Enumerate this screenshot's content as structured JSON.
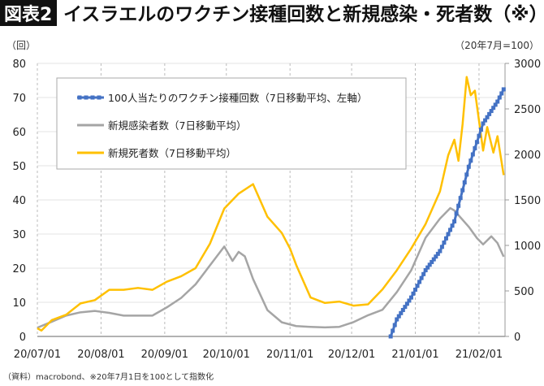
{
  "header": {
    "figure_label": "図表2",
    "title": "イスラエルのワクチン接種回数と新規感染・死者数（※）"
  },
  "footer": {
    "source": "（資料）macrobond、※20年7月1日を100として指数化"
  },
  "chart_data": {
    "type": "line",
    "title": "イスラエルのワクチン接種回数と新規感染・死者数（※）",
    "left_axis": {
      "unit_label": "（回）",
      "ylim": [
        0,
        80
      ],
      "ticks": [
        "0",
        "10",
        "20",
        "30",
        "40",
        "50",
        "60",
        "70",
        "80"
      ]
    },
    "right_axis": {
      "unit_label": "（20年7月=100）",
      "ylim": [
        0,
        3000
      ],
      "ticks": [
        "0",
        "500",
        "1000",
        "1500",
        "2000",
        "2500",
        "3000"
      ]
    },
    "x_ticks": [
      "20/07/01",
      "20/08/01",
      "20/09/01",
      "20/10/01",
      "20/11/01",
      "20/12/01",
      "21/01/01",
      "21/02/01"
    ],
    "x_tick_dates": [
      "2020-07-01",
      "2020-08-01",
      "2020-09-01",
      "2020-10-01",
      "2020-11-01",
      "2020-12-01",
      "2021-01-01",
      "2021-02-01"
    ],
    "grid": true,
    "legend_position": "top-left",
    "series": [
      {
        "name": "100人当たりのワクチン接種回数（7日移動平均、左軸）",
        "axis": "left",
        "color": "#4472c4",
        "marker": "square",
        "points": [
          [
            "2020-12-20",
            0
          ],
          [
            "2020-12-23",
            5
          ],
          [
            "2020-12-30",
            11.4
          ],
          [
            "2021-01-06",
            19.4
          ],
          [
            "2021-01-13",
            25
          ],
          [
            "2021-01-20",
            33.7
          ],
          [
            "2021-01-27",
            49.7
          ],
          [
            "2021-02-03",
            62.4
          ],
          [
            "2021-02-10",
            68.8
          ],
          [
            "2021-02-13",
            72.4
          ]
        ]
      },
      {
        "name": "新規感染者数（7日移動平均）",
        "axis": "right",
        "color": "#a5a5a5",
        "points": [
          [
            "2020-07-01",
            96
          ],
          [
            "2020-07-08",
            161
          ],
          [
            "2020-07-15",
            229
          ],
          [
            "2020-07-22",
            265
          ],
          [
            "2020-07-29",
            280
          ],
          [
            "2020-08-05",
            259
          ],
          [
            "2020-08-12",
            229
          ],
          [
            "2020-08-19",
            229
          ],
          [
            "2020-08-26",
            229
          ],
          [
            "2020-09-02",
            319
          ],
          [
            "2020-09-09",
            423
          ],
          [
            "2020-09-16",
            572
          ],
          [
            "2020-09-23",
            780
          ],
          [
            "2020-09-30",
            988
          ],
          [
            "2020-10-04",
            830
          ],
          [
            "2020-10-07",
            929
          ],
          [
            "2020-10-10",
            880
          ],
          [
            "2020-10-14",
            631
          ],
          [
            "2020-10-21",
            289
          ],
          [
            "2020-10-28",
            155
          ],
          [
            "2020-11-04",
            114
          ],
          [
            "2020-11-11",
            105
          ],
          [
            "2020-11-18",
            99
          ],
          [
            "2020-11-25",
            105
          ],
          [
            "2020-12-02",
            158
          ],
          [
            "2020-12-09",
            233
          ],
          [
            "2020-12-16",
            293
          ],
          [
            "2020-12-23",
            487
          ],
          [
            "2020-12-30",
            727
          ],
          [
            "2021-01-06",
            1085
          ],
          [
            "2021-01-13",
            1295
          ],
          [
            "2021-01-18",
            1410
          ],
          [
            "2021-01-20",
            1384
          ],
          [
            "2021-01-27",
            1205
          ],
          [
            "2021-01-31",
            1080
          ],
          [
            "2021-02-03",
            1011
          ],
          [
            "2021-02-07",
            1100
          ],
          [
            "2021-02-10",
            1026
          ],
          [
            "2021-02-13",
            876
          ]
        ]
      },
      {
        "name": "新規死者数（7日移動平均）",
        "axis": "right",
        "color": "#ffc000",
        "points": [
          [
            "2020-07-01",
            89
          ],
          [
            "2020-07-03",
            65
          ],
          [
            "2020-07-08",
            179
          ],
          [
            "2020-07-15",
            238
          ],
          [
            "2020-07-22",
            363
          ],
          [
            "2020-07-29",
            399
          ],
          [
            "2020-08-05",
            512
          ],
          [
            "2020-08-12",
            512
          ],
          [
            "2020-08-19",
            533
          ],
          [
            "2020-08-26",
            512
          ],
          [
            "2020-09-02",
            601
          ],
          [
            "2020-09-09",
            661
          ],
          [
            "2020-09-16",
            750
          ],
          [
            "2020-09-23",
            1018
          ],
          [
            "2020-09-30",
            1405
          ],
          [
            "2020-10-07",
            1569
          ],
          [
            "2020-10-14",
            1673
          ],
          [
            "2020-10-21",
            1315
          ],
          [
            "2020-10-28",
            1137
          ],
          [
            "2020-11-01",
            966
          ],
          [
            "2020-11-04",
            786
          ],
          [
            "2020-11-11",
            428
          ],
          [
            "2020-11-18",
            368
          ],
          [
            "2020-11-25",
            383
          ],
          [
            "2020-12-02",
            338
          ],
          [
            "2020-12-09",
            353
          ],
          [
            "2020-12-16",
            517
          ],
          [
            "2020-12-23",
            727
          ],
          [
            "2020-12-30",
            966
          ],
          [
            "2021-01-06",
            1235
          ],
          [
            "2021-01-13",
            1594
          ],
          [
            "2021-01-17",
            1990
          ],
          [
            "2021-01-20",
            2162
          ],
          [
            "2021-01-22",
            1930
          ],
          [
            "2021-01-24",
            2330
          ],
          [
            "2021-01-26",
            2850
          ],
          [
            "2021-01-28",
            2650
          ],
          [
            "2021-01-30",
            2700
          ],
          [
            "2021-02-03",
            2042
          ],
          [
            "2021-02-05",
            2300
          ],
          [
            "2021-02-08",
            2020
          ],
          [
            "2021-02-10",
            2200
          ],
          [
            "2021-02-13",
            1773
          ]
        ]
      }
    ]
  }
}
